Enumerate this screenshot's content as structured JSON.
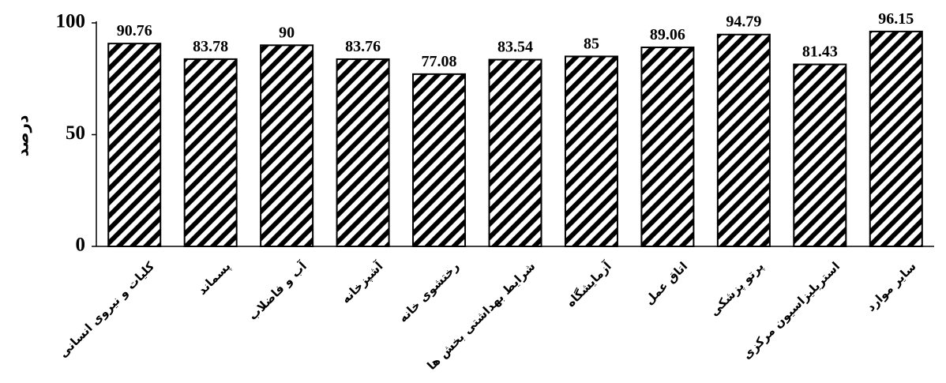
{
  "chart_data": {
    "type": "bar",
    "categories": [
      "کلیات و نیروی انسانی",
      "پسماند",
      "آب و فاضلاب",
      "آشپزخانه",
      "رختشوی خانه",
      "شرایط بهداشتی بخش ها",
      "آزمایشگاه",
      "اتاق عمل",
      "پرتو پزشکی",
      "استریلیزاسیون مرکزی",
      "سایر موارد"
    ],
    "values": [
      90.76,
      83.78,
      90,
      83.76,
      77.08,
      83.54,
      85,
      89.06,
      94.79,
      81.43,
      96.15
    ],
    "value_labels": [
      "90.76",
      "83.78",
      "90",
      "83.76",
      "77.08",
      "83.54",
      "85",
      "89.06",
      "94.79",
      "81.43",
      "96.15"
    ],
    "title": "",
    "xlabel": "",
    "ylabel": "درصد",
    "ylim": [
      0,
      100
    ],
    "yticks": [
      "0",
      "50",
      "100"
    ],
    "grid": false,
    "legend": "none",
    "bar_fill": "diagonal-hatch",
    "colors": {
      "bar_stroke": "#000000",
      "hatch": "#000000",
      "background": "#ffffff"
    }
  }
}
